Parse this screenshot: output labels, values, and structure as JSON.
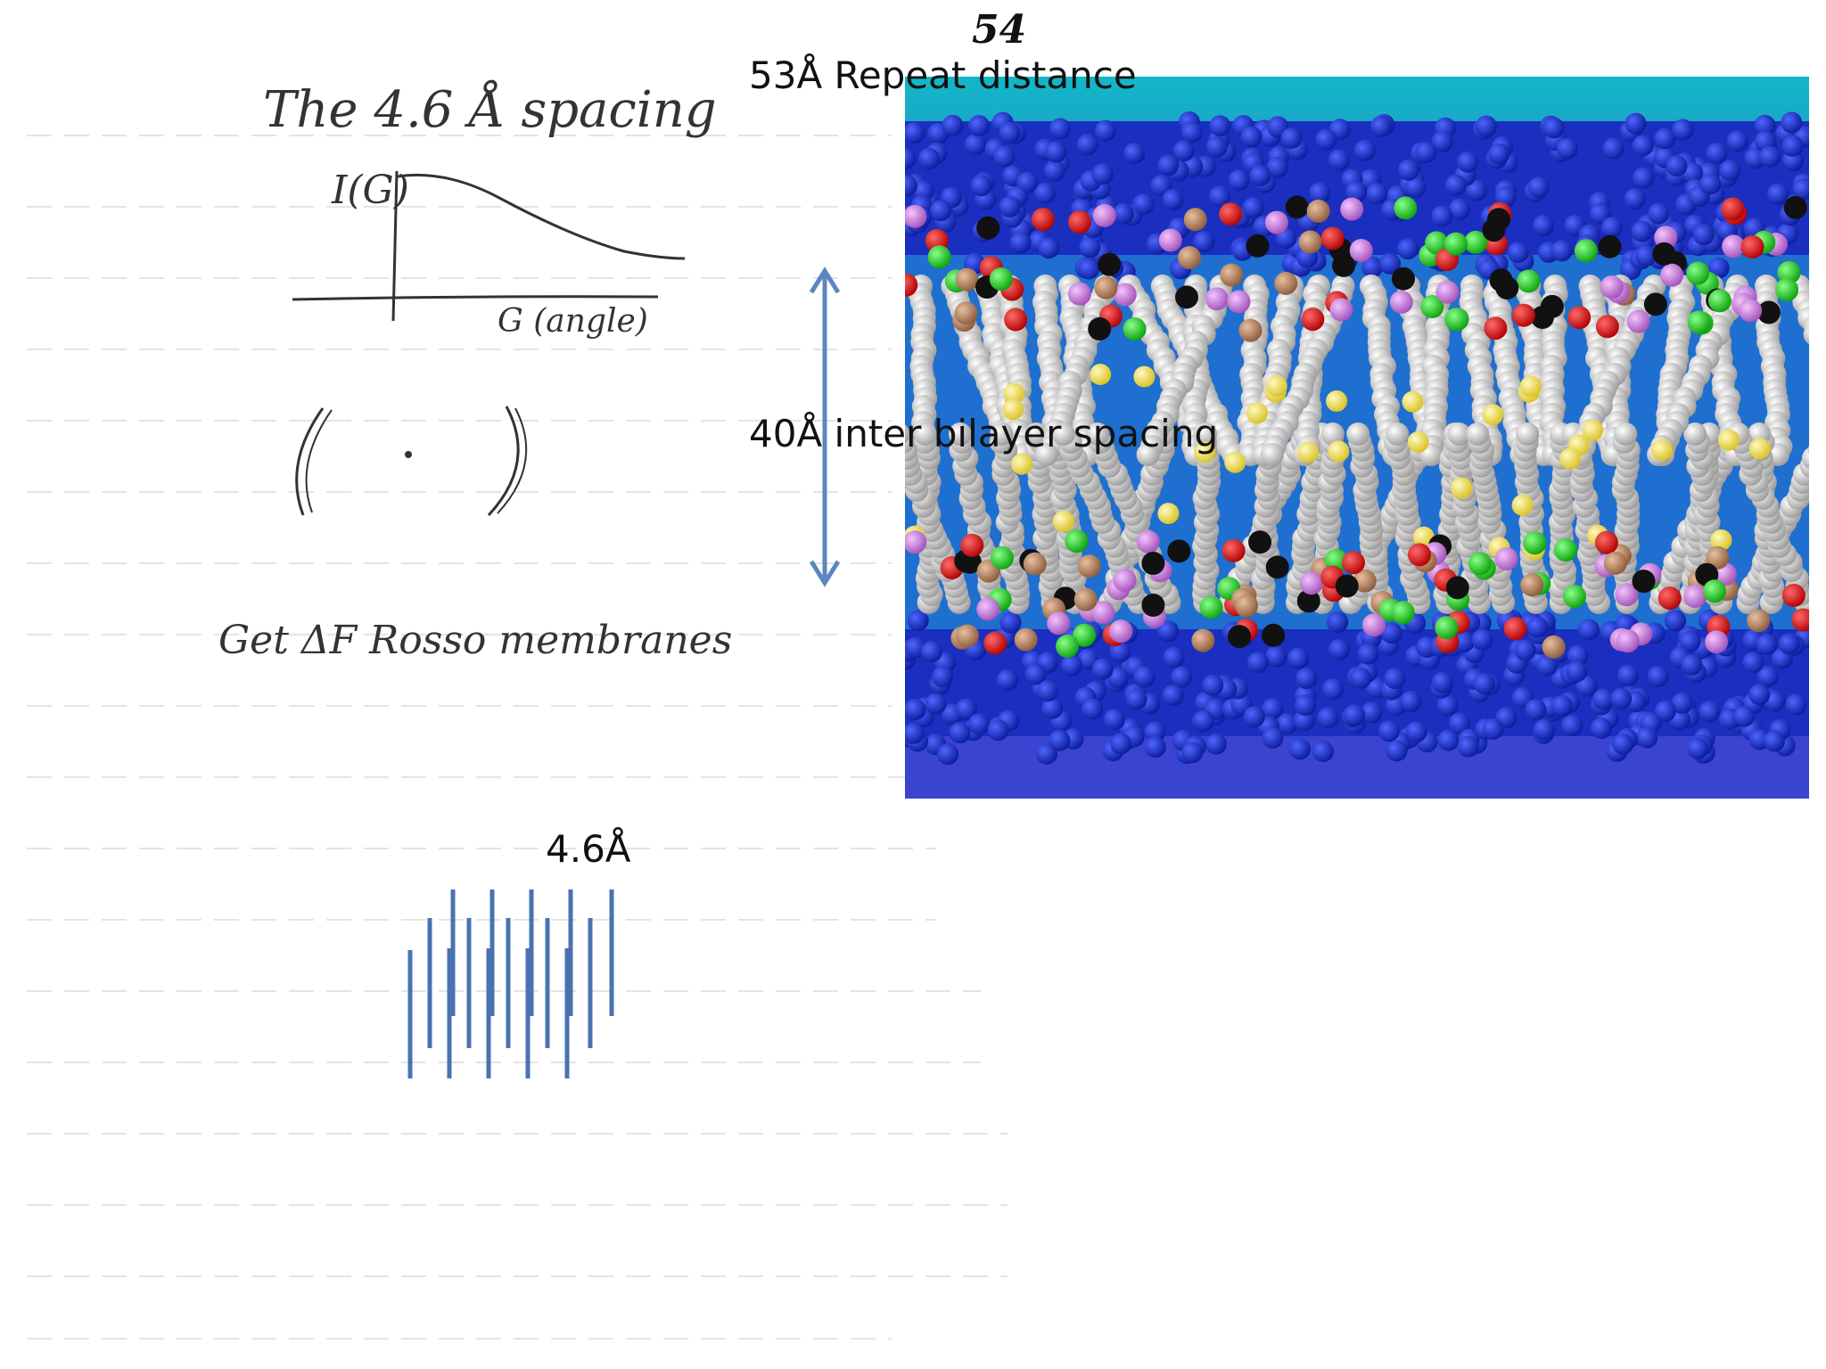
{
  "slide": {
    "page_number": "54",
    "repeat_distance_label": "53Å Repeat distance",
    "inter_bilayer_label": "40Å inter bilayer spacing",
    "spacing_label": "4.6Å"
  },
  "notes": {
    "title": "The 4.6 Å spacing",
    "y_axis_label": "I(G)",
    "x_axis_label": "G (angle)",
    "footnote": "Get ΔF Rosso membranes"
  },
  "colors": {
    "water_top": "#12b8c8",
    "water_blue": "#1a2ec0",
    "lipid_tail": "#c8c8c8",
    "oxygen": "#e01010",
    "phosphate": "#b08060",
    "choline": "#20e020",
    "headgroup_pink": "#d080e0",
    "double_bond": "#f2e040",
    "arrow": "#5b86c0",
    "spacing_lines": "#4a72b0"
  }
}
